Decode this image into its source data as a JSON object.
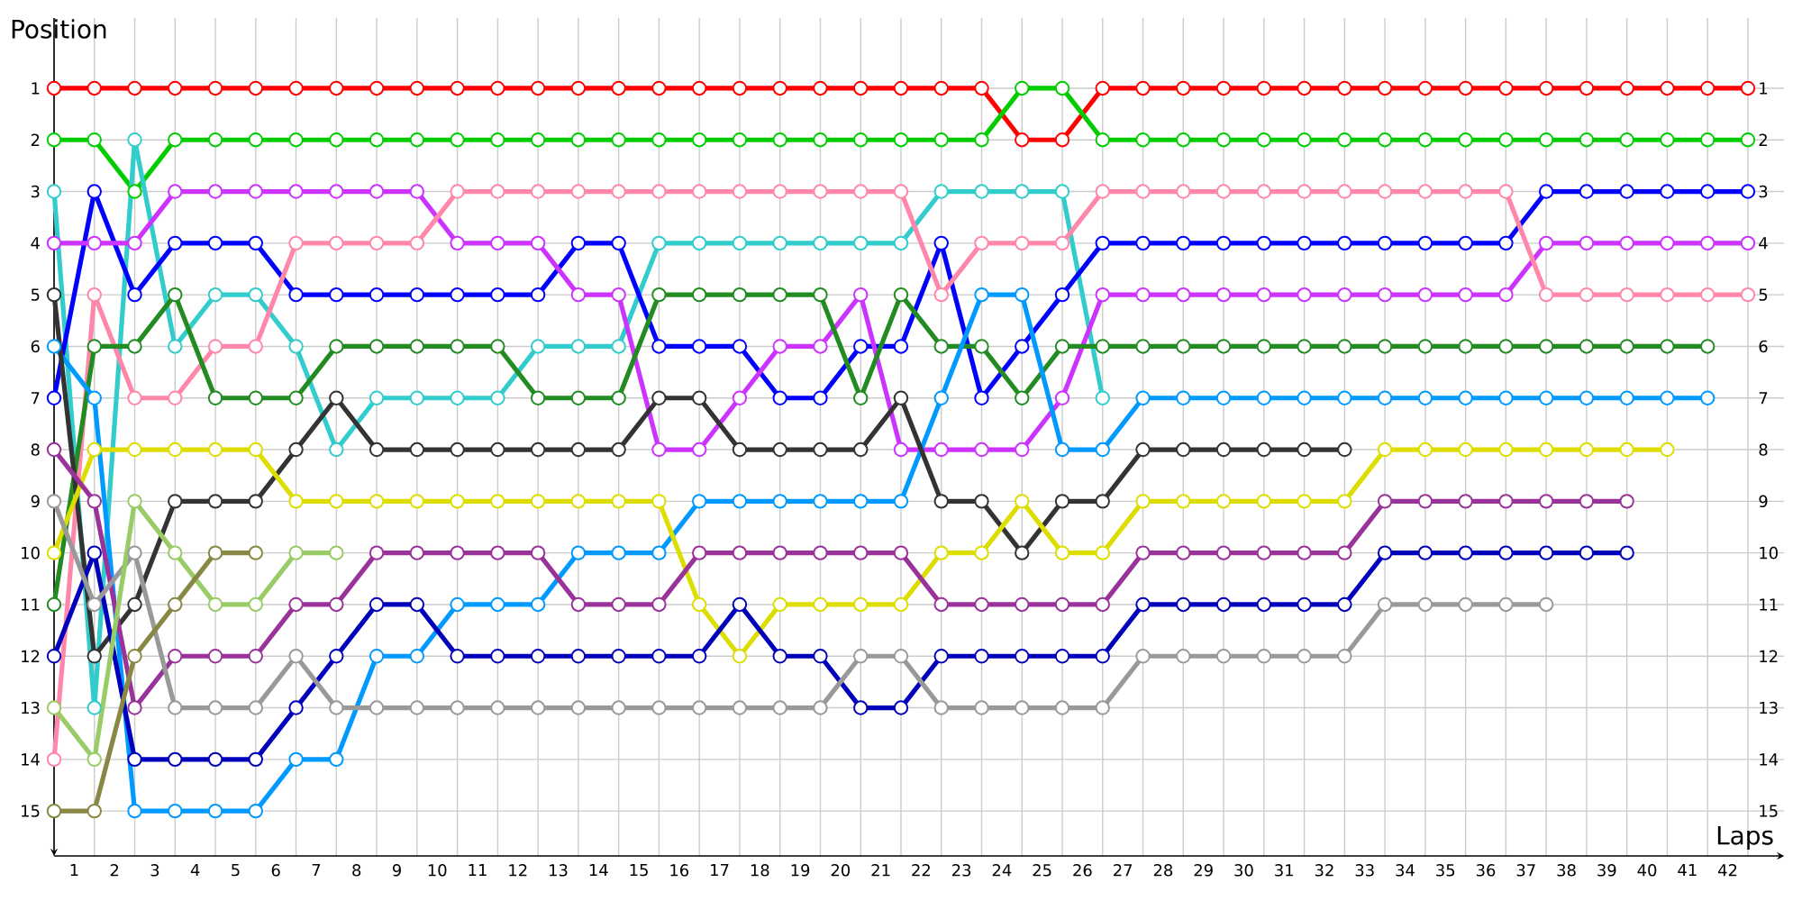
{
  "chart_data": {
    "type": "line",
    "xlabel": "Laps",
    "ylabel": "Position",
    "marker": "circle",
    "line_style": "solid",
    "grid": true,
    "x": [
      0,
      1,
      2,
      3,
      4,
      5,
      6,
      7,
      8,
      9,
      10,
      11,
      12,
      13,
      14,
      15,
      16,
      17,
      18,
      19,
      20,
      21,
      22,
      23,
      24,
      25,
      26,
      27,
      28,
      29,
      30,
      31,
      32,
      33,
      34,
      35,
      36,
      37,
      38,
      39,
      40,
      41,
      42
    ],
    "xlim": [
      0,
      42.9
    ],
    "xticks": [
      {
        "value": 0.5,
        "label": "1"
      },
      {
        "value": 1.5,
        "label": "2"
      },
      {
        "value": 2.5,
        "label": "3"
      },
      {
        "value": 3.5,
        "label": "4"
      },
      {
        "value": 4.5,
        "label": "5"
      },
      {
        "value": 5.5,
        "label": "6"
      },
      {
        "value": 6.5,
        "label": "7"
      },
      {
        "value": 7.5,
        "label": "8"
      },
      {
        "value": 8.5,
        "label": "9"
      },
      {
        "value": 9.5,
        "label": "10"
      },
      {
        "value": 10.5,
        "label": "11"
      },
      {
        "value": 11.5,
        "label": "12"
      },
      {
        "value": 12.5,
        "label": "13"
      },
      {
        "value": 13.5,
        "label": "14"
      },
      {
        "value": 14.5,
        "label": "15"
      },
      {
        "value": 15.5,
        "label": "16"
      },
      {
        "value": 16.5,
        "label": "17"
      },
      {
        "value": 17.5,
        "label": "18"
      },
      {
        "value": 18.5,
        "label": "19"
      },
      {
        "value": 19.5,
        "label": "20"
      },
      {
        "value": 20.5,
        "label": "21"
      },
      {
        "value": 21.5,
        "label": "22"
      },
      {
        "value": 22.5,
        "label": "23"
      },
      {
        "value": 23.5,
        "label": "24"
      },
      {
        "value": 24.5,
        "label": "25"
      },
      {
        "value": 25.5,
        "label": "26"
      },
      {
        "value": 26.5,
        "label": "27"
      },
      {
        "value": 27.5,
        "label": "28"
      },
      {
        "value": 28.5,
        "label": "29"
      },
      {
        "value": 29.5,
        "label": "30"
      },
      {
        "value": 30.5,
        "label": "31"
      },
      {
        "value": 31.5,
        "label": "32"
      },
      {
        "value": 32.5,
        "label": "33"
      },
      {
        "value": 33.5,
        "label": "34"
      },
      {
        "value": 34.5,
        "label": "35"
      },
      {
        "value": 35.5,
        "label": "36"
      },
      {
        "value": 36.5,
        "label": "37"
      },
      {
        "value": 37.5,
        "label": "38"
      },
      {
        "value": 38.5,
        "label": "39"
      },
      {
        "value": 39.5,
        "label": "40"
      },
      {
        "value": 40.5,
        "label": "41"
      },
      {
        "value": 41.5,
        "label": "42"
      }
    ],
    "ylim": [
      15.87,
      -0.36
    ],
    "yticks": [
      1,
      2,
      3,
      4,
      5,
      6,
      7,
      8,
      9,
      10,
      11,
      12,
      13,
      14,
      15
    ],
    "y2lim": [
      15.87,
      -0.36
    ],
    "y2ticks": [
      1,
      2,
      3,
      4,
      5,
      6,
      7,
      8,
      9,
      10,
      11,
      12,
      13,
      14,
      15
    ],
    "series": [
      {
        "color": "#ff0000",
        "values": [
          1,
          1,
          1,
          1,
          1,
          1,
          1,
          1,
          1,
          1,
          1,
          1,
          1,
          1,
          1,
          1,
          1,
          1,
          1,
          1,
          1,
          1,
          1,
          1,
          2,
          2,
          1,
          1,
          1,
          1,
          1,
          1,
          1,
          1,
          1,
          1,
          1,
          1,
          1,
          1,
          1,
          1,
          1
        ]
      },
      {
        "color": "#00cc00",
        "values": [
          2,
          2,
          3,
          2,
          2,
          2,
          2,
          2,
          2,
          2,
          2,
          2,
          2,
          2,
          2,
          2,
          2,
          2,
          2,
          2,
          2,
          2,
          2,
          2,
          1,
          1,
          2,
          2,
          2,
          2,
          2,
          2,
          2,
          2,
          2,
          2,
          2,
          2,
          2,
          2,
          2,
          2,
          2
        ]
      },
      {
        "color": "#33cccc",
        "values": [
          3,
          13,
          2,
          6,
          5,
          5,
          6,
          8,
          7,
          7,
          7,
          7,
          6,
          6,
          6,
          4,
          4,
          4,
          4,
          4,
          4,
          4,
          3,
          3,
          3,
          3,
          7,
          null,
          null,
          null,
          null,
          null,
          null,
          null,
          null,
          null,
          null,
          null,
          null,
          null,
          null,
          null,
          null
        ]
      },
      {
        "color": "#0000ff",
        "values": [
          7,
          3,
          5,
          4,
          4,
          4,
          5,
          5,
          5,
          5,
          5,
          5,
          5,
          4,
          4,
          6,
          6,
          6,
          7,
          7,
          6,
          6,
          4,
          7,
          6,
          5,
          4,
          4,
          4,
          4,
          4,
          4,
          4,
          4,
          4,
          4,
          4,
          3,
          3,
          3,
          3,
          3,
          3
        ]
      },
      {
        "color": "#cc33ff",
        "values": [
          4,
          4,
          4,
          3,
          3,
          3,
          3,
          3,
          3,
          3,
          4,
          4,
          4,
          5,
          5,
          8,
          8,
          7,
          6,
          6,
          5,
          8,
          8,
          8,
          8,
          7,
          5,
          5,
          5,
          5,
          5,
          5,
          5,
          5,
          5,
          5,
          5,
          4,
          4,
          4,
          4,
          4,
          4
        ]
      },
      {
        "color": "#ff88aa",
        "values": [
          14,
          5,
          7,
          7,
          6,
          6,
          4,
          4,
          4,
          4,
          3,
          3,
          3,
          3,
          3,
          3,
          3,
          3,
          3,
          3,
          3,
          3,
          5,
          4,
          4,
          4,
          3,
          3,
          3,
          3,
          3,
          3,
          3,
          3,
          3,
          3,
          3,
          5,
          5,
          5,
          5,
          5,
          5
        ]
      },
      {
        "color": "#228b22",
        "values": [
          11,
          6,
          6,
          5,
          7,
          7,
          7,
          6,
          6,
          6,
          6,
          6,
          7,
          7,
          7,
          5,
          5,
          5,
          5,
          5,
          7,
          5,
          6,
          6,
          7,
          6,
          6,
          6,
          6,
          6,
          6,
          6,
          6,
          6,
          6,
          6,
          6,
          6,
          6,
          6,
          6,
          6,
          null
        ]
      },
      {
        "color": "#0099ff",
        "values": [
          6,
          7,
          15,
          15,
          15,
          15,
          14,
          14,
          12,
          12,
          11,
          11,
          11,
          10,
          10,
          10,
          9,
          9,
          9,
          9,
          9,
          9,
          7,
          5,
          5,
          8,
          8,
          7,
          7,
          7,
          7,
          7,
          7,
          7,
          7,
          7,
          7,
          7,
          7,
          7,
          7,
          7,
          null
        ]
      },
      {
        "color": "#333333",
        "values": [
          5,
          12,
          11,
          9,
          9,
          9,
          8,
          7,
          8,
          8,
          8,
          8,
          8,
          8,
          8,
          7,
          7,
          8,
          8,
          8,
          8,
          7,
          9,
          9,
          10,
          9,
          9,
          8,
          8,
          8,
          8,
          8,
          8,
          null,
          null,
          null,
          null,
          null,
          null,
          null,
          null,
          null,
          null
        ]
      },
      {
        "color": "#dddd00",
        "values": [
          10,
          8,
          8,
          8,
          8,
          8,
          9,
          9,
          9,
          9,
          9,
          9,
          9,
          9,
          9,
          9,
          11,
          12,
          11,
          11,
          11,
          11,
          10,
          10,
          9,
          10,
          10,
          9,
          9,
          9,
          9,
          9,
          9,
          8,
          8,
          8,
          8,
          8,
          8,
          8,
          8,
          null,
          null
        ]
      },
      {
        "color": "#993399",
        "values": [
          8,
          9,
          13,
          12,
          12,
          12,
          11,
          11,
          10,
          10,
          10,
          10,
          10,
          11,
          11,
          11,
          10,
          10,
          10,
          10,
          10,
          10,
          11,
          11,
          11,
          11,
          11,
          10,
          10,
          10,
          10,
          10,
          10,
          9,
          9,
          9,
          9,
          9,
          9,
          9,
          null,
          null,
          null
        ]
      },
      {
        "color": "#0000bb",
        "values": [
          12,
          10,
          14,
          14,
          14,
          14,
          13,
          12,
          11,
          11,
          12,
          12,
          12,
          12,
          12,
          12,
          12,
          11,
          12,
          12,
          13,
          13,
          12,
          12,
          12,
          12,
          12,
          11,
          11,
          11,
          11,
          11,
          11,
          10,
          10,
          10,
          10,
          10,
          10,
          10,
          null,
          null,
          null
        ]
      },
      {
        "color": "#999999",
        "values": [
          9,
          11,
          10,
          13,
          13,
          13,
          12,
          13,
          13,
          13,
          13,
          13,
          13,
          13,
          13,
          13,
          13,
          13,
          13,
          13,
          12,
          12,
          13,
          13,
          13,
          13,
          13,
          12,
          12,
          12,
          12,
          12,
          12,
          11,
          11,
          11,
          11,
          11,
          null,
          null,
          null,
          null,
          null
        ]
      },
      {
        "color": "#99cc66",
        "values": [
          13,
          14,
          9,
          10,
          11,
          11,
          10,
          10,
          null,
          null,
          null,
          null,
          null,
          null,
          null,
          null,
          null,
          null,
          null,
          null,
          null,
          null,
          null,
          null,
          null,
          null,
          null,
          null,
          null,
          null,
          null,
          null,
          null,
          null,
          null,
          null,
          null,
          null,
          null,
          null,
          null,
          null,
          null
        ]
      },
      {
        "color": "#888844",
        "values": [
          15,
          15,
          12,
          11,
          10,
          10,
          null,
          null,
          null,
          null,
          null,
          null,
          null,
          null,
          null,
          null,
          null,
          null,
          null,
          null,
          null,
          null,
          null,
          null,
          null,
          null,
          null,
          null,
          null,
          null,
          null,
          null,
          null,
          null,
          null,
          null,
          null,
          null,
          null,
          null,
          null,
          null,
          null
        ]
      }
    ]
  }
}
